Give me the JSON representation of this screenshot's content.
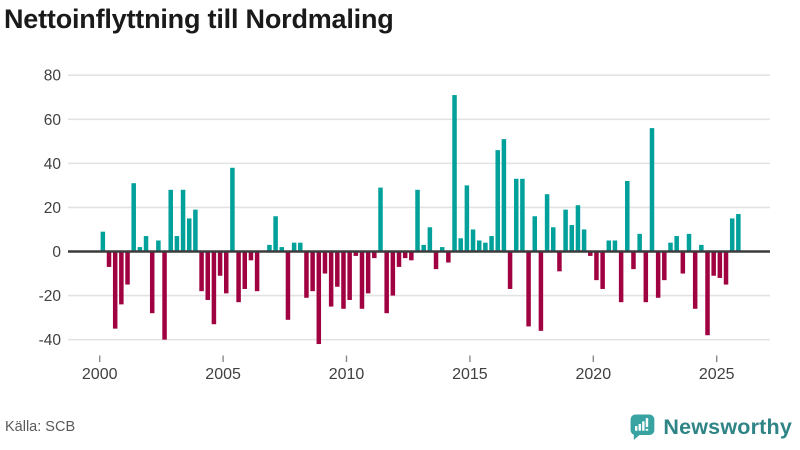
{
  "title": "Nettoinflyttning till Nordmaling",
  "source": "Källa: SCB",
  "logo": {
    "text": "Newsworthy",
    "icon": "newsworthy-speech-bubble-bars-icon"
  },
  "colors": {
    "positive_bar": "#00a09b",
    "negative_bar": "#a00140",
    "grid_line": "#e3e3e3",
    "zero_line": "#3b3b3b",
    "axis_text": "#404040",
    "title_text": "#1a1a1a",
    "source_text": "#5a5a5a",
    "tick_mark": "#8a8a8a",
    "logo_icon": "#38a3a0",
    "logo_text": "#2f8486"
  },
  "chart_data": {
    "type": "bar",
    "title": "Nettoinflyttning till Nordmaling",
    "xlabel": "",
    "ylabel": "",
    "x_unit": "quarter",
    "range": "2000 Q1 – 2025 Q4",
    "grid": "horizontal",
    "legend": "none",
    "ylim": [
      -45,
      85
    ],
    "y_ticks": [
      80,
      60,
      40,
      20,
      0,
      -20,
      -40
    ],
    "x_tick_labels": [
      "2000",
      "2005",
      "2010",
      "2015",
      "2020",
      "2025"
    ],
    "series_by_year": [
      {
        "year": 2000,
        "q": [
          9,
          -7,
          -35,
          -24
        ]
      },
      {
        "year": 2001,
        "q": [
          -15,
          31,
          2,
          7
        ]
      },
      {
        "year": 2002,
        "q": [
          -28,
          5,
          -40,
          28
        ]
      },
      {
        "year": 2003,
        "q": [
          7,
          28,
          15,
          19
        ]
      },
      {
        "year": 2004,
        "q": [
          -18,
          -22,
          -33,
          -11
        ]
      },
      {
        "year": 2005,
        "q": [
          -19,
          38,
          -23,
          -17
        ]
      },
      {
        "year": 2006,
        "q": [
          -4,
          -18,
          0,
          3
        ]
      },
      {
        "year": 2007,
        "q": [
          16,
          2,
          -31,
          4
        ]
      },
      {
        "year": 2008,
        "q": [
          4,
          -21,
          -18,
          -42
        ]
      },
      {
        "year": 2009,
        "q": [
          -10,
          -25,
          -16,
          -26
        ]
      },
      {
        "year": 2010,
        "q": [
          -22,
          -2,
          -26,
          -19
        ]
      },
      {
        "year": 2011,
        "q": [
          -3,
          29,
          -28,
          -20
        ]
      },
      {
        "year": 2012,
        "q": [
          -7,
          -3,
          -4,
          28
        ]
      },
      {
        "year": 2013,
        "q": [
          3,
          11,
          -8,
          2
        ]
      },
      {
        "year": 2014,
        "q": [
          -5,
          71,
          6,
          30
        ]
      },
      {
        "year": 2015,
        "q": [
          10,
          5,
          4,
          7
        ]
      },
      {
        "year": 2016,
        "q": [
          46,
          51,
          -17,
          33
        ]
      },
      {
        "year": 2017,
        "q": [
          33,
          -34,
          16,
          -36
        ]
      },
      {
        "year": 2018,
        "q": [
          26,
          11,
          -9,
          19
        ]
      },
      {
        "year": 2019,
        "q": [
          12,
          21,
          10,
          -2
        ]
      },
      {
        "year": 2020,
        "q": [
          -13,
          -17,
          5,
          5
        ]
      },
      {
        "year": 2021,
        "q": [
          -23,
          32,
          -8,
          8
        ]
      },
      {
        "year": 2022,
        "q": [
          -23,
          56,
          -21,
          -13
        ]
      },
      {
        "year": 2023,
        "q": [
          4,
          7,
          -10,
          8
        ]
      },
      {
        "year": 2024,
        "q": [
          -26,
          3,
          -38,
          -11
        ]
      },
      {
        "year": 2025,
        "q": [
          -12,
          -15,
          15,
          17
        ]
      }
    ]
  }
}
